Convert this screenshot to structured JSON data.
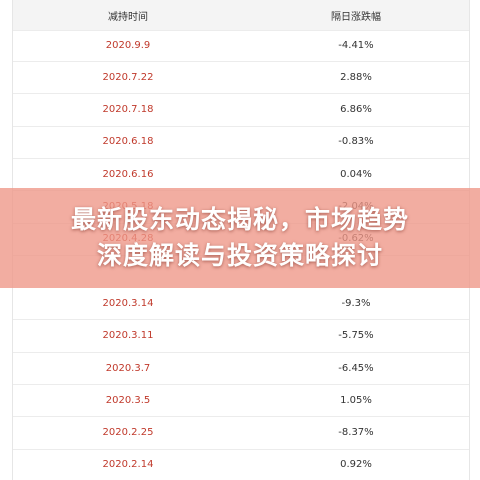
{
  "table": {
    "header": [
      "减持时间",
      "隔日涨跌幅"
    ],
    "rows": [
      [
        "2020.9.9",
        "-4.41%"
      ],
      [
        "2020.7.22",
        "2.88%"
      ],
      [
        "2020.7.18",
        "6.86%"
      ],
      [
        "2020.6.18",
        "-0.83%"
      ],
      [
        "2020.6.16",
        "0.04%"
      ],
      [
        "2020.5.18",
        "-2.04%"
      ],
      [
        "2020.4.28",
        "-0.62%"
      ],
      [
        "2020.3.14",
        "-9.3%"
      ],
      [
        "2020.3.11",
        "-5.75%"
      ],
      [
        "2020.3.7",
        "-6.45%"
      ],
      [
        "2020.3.5",
        "1.05%"
      ],
      [
        "2020.2.25",
        "-8.37%"
      ],
      [
        "2020.2.14",
        "0.92%"
      ]
    ]
  },
  "banner": {
    "lines": [
      "最新股东动态揭秘，市场趋势",
      "深度解读与投资策略探讨"
    ]
  }
}
